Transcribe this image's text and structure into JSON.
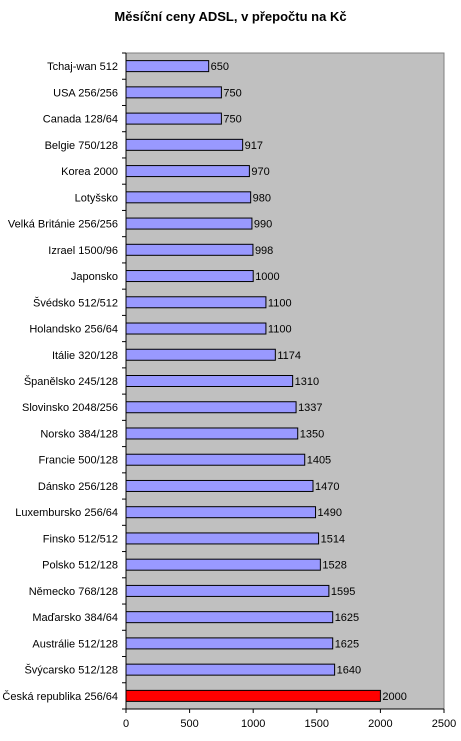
{
  "chart_data": {
    "type": "bar",
    "orientation": "horizontal",
    "title": "Měsíční ceny ADSL, v přepočtu na Kč",
    "xlabel": "",
    "ylabel": "",
    "xlim": [
      0,
      2500
    ],
    "x_ticks": [
      0,
      500,
      1000,
      1500,
      2000,
      2500
    ],
    "grid": false,
    "plot_background": "#c0c0c0",
    "bar_color": "#9999ff",
    "highlight_color": "#ff0000",
    "categories": [
      "Tchaj-wan 512",
      "USA 256/256",
      "Canada 128/64",
      "Belgie 750/128",
      "Korea 2000",
      "Lotyšsko",
      "Velká Británie 256/256",
      "Izrael 1500/96",
      "Japonsko",
      "Švédsko 512/512",
      "Holandsko 256/64",
      "Itálie 320/128",
      "Španělsko 245/128",
      "Slovinsko 2048/256",
      "Norsko 384/128",
      "Francie 500/128",
      "Dánsko 256/128",
      "Luxembursko 256/64",
      "Finsko 512/512",
      "Polsko 512/128",
      "Německo 768/128",
      "Maďarsko 384/64",
      "Austrálie 512/128",
      "Švýcarsko 512/128",
      "Česká republika 256/64"
    ],
    "values": [
      650,
      750,
      750,
      917,
      970,
      980,
      990,
      998,
      1000,
      1100,
      1100,
      1174,
      1310,
      1337,
      1350,
      1405,
      1470,
      1490,
      1514,
      1528,
      1595,
      1625,
      1625,
      1640,
      2000
    ],
    "highlighted": [
      "Česká republika 256/64"
    ]
  }
}
